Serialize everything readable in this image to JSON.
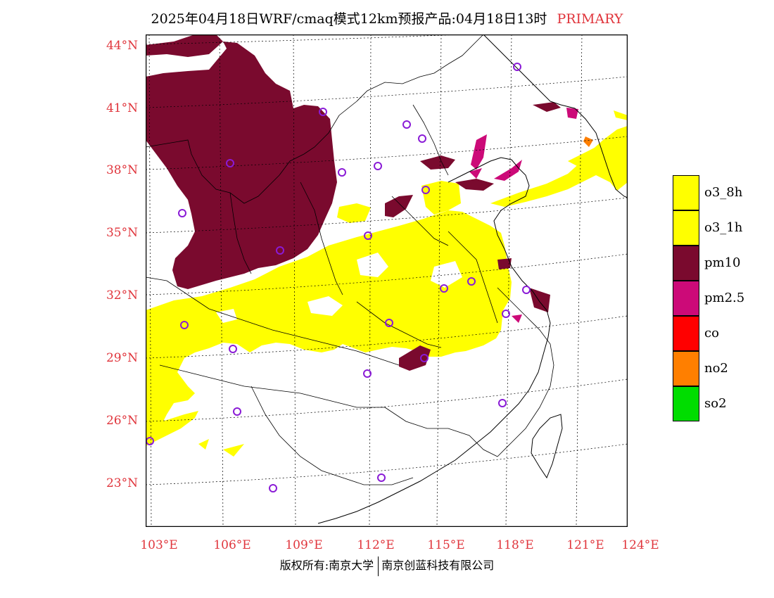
{
  "title": {
    "main": "2025年04月18日WRF/cmaq模式12km预报产品:04月18日13时",
    "tag": "PRIMARY"
  },
  "map": {
    "lat_labels": [
      "44°N",
      "41°N",
      "38°N",
      "35°N",
      "32°N",
      "29°N",
      "26°N",
      "23°N"
    ],
    "lon_labels": [
      "103°E",
      "106°E",
      "109°E",
      "112°E",
      "115°E",
      "118°E",
      "121°E",
      "124°E"
    ],
    "colors": {
      "o3_8h": "#ffff00",
      "o3_1h": "#ffff00",
      "pm10": "#7a0a2e",
      "pm2_5": "#cc0a78",
      "co": "#ff0000",
      "no2": "#ff7f00",
      "so2": "#00dd00",
      "station": "#8a1bd6",
      "border": "#000000"
    }
  },
  "legend": {
    "items": [
      {
        "label": "o3_8h",
        "color": "#ffff00"
      },
      {
        "label": "o3_1h",
        "color": "#ffff00"
      },
      {
        "label": "pm10",
        "color": "#7a0a2e"
      },
      {
        "label": "pm2.5",
        "color": "#cc0a78"
      },
      {
        "label": "co",
        "color": "#ff0000"
      },
      {
        "label": "no2",
        "color": "#ff7f00"
      },
      {
        "label": "so2",
        "color": "#00dd00"
      }
    ]
  },
  "footer": {
    "left": "版权所有:南京大学",
    "right": "南京创蓝科技有限公司"
  }
}
